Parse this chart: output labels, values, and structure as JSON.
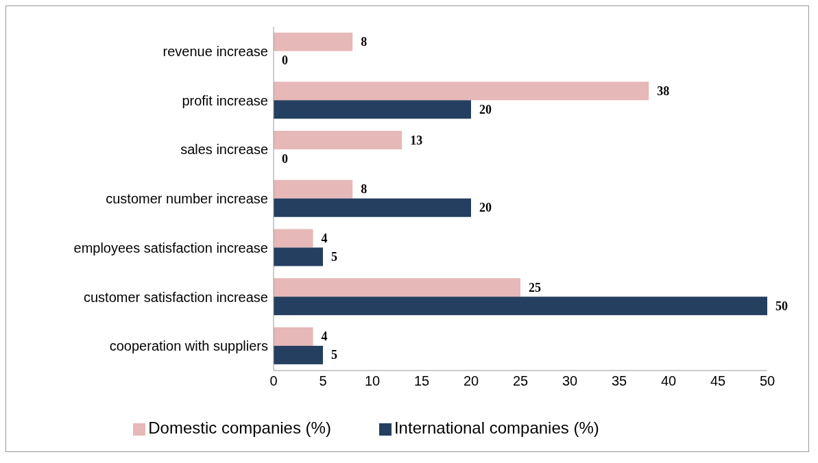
{
  "chart_data": {
    "type": "bar",
    "orientation": "horizontal",
    "categories": [
      "revenue increase",
      "profit increase",
      "sales increase",
      "customer number increase",
      "employees satisfaction increase",
      "customer satisfaction increase",
      "cooperation with suppliers"
    ],
    "series": [
      {
        "name": "Domestic companies (%)",
        "color": "#e6b8b7",
        "values": [
          8,
          38,
          13,
          8,
          4,
          25,
          4
        ]
      },
      {
        "name": "International companies (%)",
        "color": "#243f60",
        "values": [
          0,
          20,
          0,
          20,
          5,
          50,
          5
        ]
      }
    ],
    "xlim": [
      0,
      50
    ],
    "xticks": [
      0,
      5,
      10,
      15,
      20,
      25,
      30,
      35,
      40,
      45,
      50
    ],
    "grid": false,
    "legend": "bottom",
    "data_labels": true
  }
}
